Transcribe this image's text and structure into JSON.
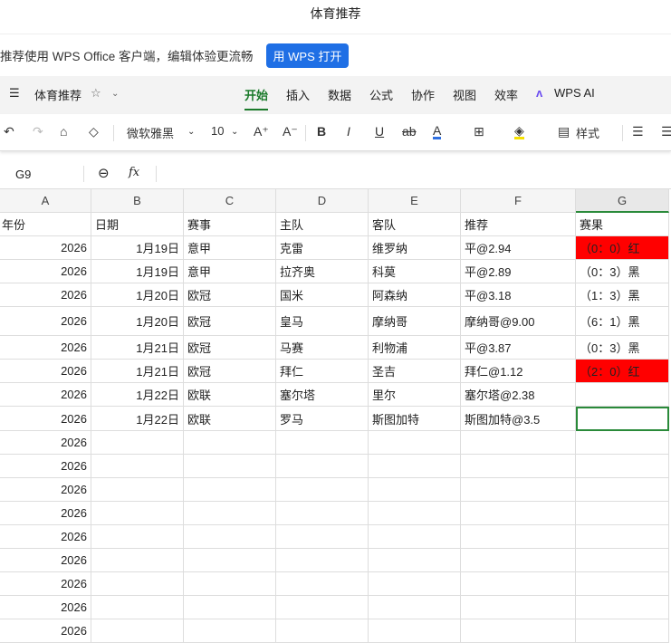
{
  "window_title": "体育推荐",
  "banner": {
    "text": "推荐使用 WPS Office 客户端，编辑体验更流畅",
    "button": "用 WPS 打开",
    "button_color": "#1f6fe5"
  },
  "ribbon": {
    "doc_name": "体育推荐",
    "tabs": [
      "开始",
      "插入",
      "数据",
      "公式",
      "协作",
      "视图",
      "效率",
      "WPS AI"
    ],
    "active_tab": "开始"
  },
  "toolbar": {
    "font": "微软雅黑",
    "size": "10",
    "style_label": "样式"
  },
  "formula_bar": {
    "cell_ref": "G9",
    "fx": "fx",
    "value": ""
  },
  "sheet": {
    "columns": [
      "A",
      "B",
      "C",
      "D",
      "E",
      "F",
      "G"
    ],
    "selected_cell": "G9",
    "header_row": [
      "年份",
      "日期",
      "赛事",
      "主队",
      "客队",
      "推荐",
      "赛果"
    ],
    "rows": [
      [
        "2026",
        "1月19日",
        "意甲",
        "克雷",
        "维罗纳",
        "平@2.94",
        "（0：0）红"
      ],
      [
        "2026",
        "1月19日",
        "意甲",
        "拉齐奥",
        "科莫",
        "平@2.89",
        "（0：3）黑"
      ],
      [
        "2026",
        "1月20日",
        "欧冠",
        "国米",
        "阿森纳",
        "平@3.18",
        "（1：3）黑"
      ],
      [
        "2026",
        "1月20日",
        "欧冠",
        "皇马",
        "摩纳哥",
        "摩纳哥@9.00",
        "（6：1）黑"
      ],
      [
        "2026",
        "1月21日",
        "欧冠",
        "马赛",
        "利物浦",
        "平@3.87",
        "（0：3）黑"
      ],
      [
        "2026",
        "1月21日",
        "欧冠",
        "拜仁",
        "圣吉",
        "拜仁@1.12",
        "（2：0）红"
      ],
      [
        "2026",
        "1月22日",
        "欧联",
        "塞尔塔",
        "里尔",
        "塞尔塔@2.38",
        ""
      ],
      [
        "2026",
        "1月22日",
        "欧联",
        "罗马",
        "斯图加特",
        "斯图加特@3.5",
        ""
      ],
      [
        "2026",
        "",
        "",
        "",
        "",
        "",
        ""
      ],
      [
        "2026",
        "",
        "",
        "",
        "",
        "",
        ""
      ],
      [
        "2026",
        "",
        "",
        "",
        "",
        "",
        ""
      ],
      [
        "2026",
        "",
        "",
        "",
        "",
        "",
        ""
      ],
      [
        "2026",
        "",
        "",
        "",
        "",
        "",
        ""
      ],
      [
        "2026",
        "",
        "",
        "",
        "",
        "",
        ""
      ],
      [
        "2026",
        "",
        "",
        "",
        "",
        "",
        ""
      ],
      [
        "2026",
        "",
        "",
        "",
        "",
        "",
        ""
      ],
      [
        "2026",
        "",
        "",
        "",
        "",
        "",
        ""
      ]
    ],
    "highlight_color": "#ff0000"
  }
}
